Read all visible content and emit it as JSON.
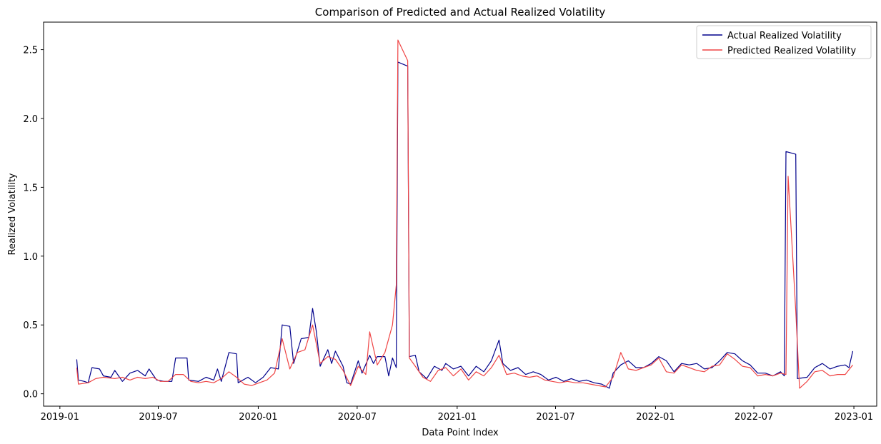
{
  "chart_data": {
    "type": "line",
    "title": "Comparison of Predicted and Actual Realized Volatility",
    "xlabel": "Data Point Index",
    "ylabel": "Realized Volatility",
    "x_ticks": [
      "2019-01",
      "2019-07",
      "2020-01",
      "2020-07",
      "2021-01",
      "2021-07",
      "2022-01",
      "2022-07",
      "2023-01"
    ],
    "y_ticks": [
      "0.0",
      "0.5",
      "1.0",
      "1.5",
      "2.0",
      "2.5"
    ],
    "xlim": [
      "2018-12-02",
      "2023-02-12"
    ],
    "ylim": [
      -0.09,
      2.7
    ],
    "grid": false,
    "legend": "top-right",
    "series": [
      {
        "name": "Actual Realized Volatility",
        "color": "#00008b",
        "points": [
          [
            "2019-02-01",
            0.25
          ],
          [
            "2019-02-04",
            0.1
          ],
          [
            "2019-02-15",
            0.09
          ],
          [
            "2019-02-22",
            0.08
          ],
          [
            "2019-03-01",
            0.19
          ],
          [
            "2019-03-15",
            0.18
          ],
          [
            "2019-03-22",
            0.13
          ],
          [
            "2019-04-05",
            0.12
          ],
          [
            "2019-04-12",
            0.17
          ],
          [
            "2019-04-26",
            0.09
          ],
          [
            "2019-05-10",
            0.15
          ],
          [
            "2019-05-24",
            0.17
          ],
          [
            "2019-06-07",
            0.13
          ],
          [
            "2019-06-14",
            0.18
          ],
          [
            "2019-06-28",
            0.1
          ],
          [
            "2019-07-12",
            0.09
          ],
          [
            "2019-07-26",
            0.09
          ],
          [
            "2019-08-02",
            0.26
          ],
          [
            "2019-08-23",
            0.26
          ],
          [
            "2019-08-26",
            0.1
          ],
          [
            "2019-09-13",
            0.09
          ],
          [
            "2019-09-27",
            0.12
          ],
          [
            "2019-10-11",
            0.1
          ],
          [
            "2019-10-18",
            0.18
          ],
          [
            "2019-10-25",
            0.09
          ],
          [
            "2019-11-08",
            0.3
          ],
          [
            "2019-11-22",
            0.29
          ],
          [
            "2019-11-25",
            0.08
          ],
          [
            "2019-12-13",
            0.12
          ],
          [
            "2019-12-27",
            0.08
          ],
          [
            "2020-01-10",
            0.12
          ],
          [
            "2020-01-24",
            0.19
          ],
          [
            "2020-02-07",
            0.18
          ],
          [
            "2020-02-14",
            0.5
          ],
          [
            "2020-02-28",
            0.49
          ],
          [
            "2020-03-06",
            0.22
          ],
          [
            "2020-03-20",
            0.4
          ],
          [
            "2020-04-03",
            0.41
          ],
          [
            "2020-04-10",
            0.62
          ],
          [
            "2020-04-17",
            0.45
          ],
          [
            "2020-04-24",
            0.2
          ],
          [
            "2020-05-08",
            0.32
          ],
          [
            "2020-05-15",
            0.22
          ],
          [
            "2020-05-22",
            0.31
          ],
          [
            "2020-06-05",
            0.2
          ],
          [
            "2020-06-12",
            0.08
          ],
          [
            "2020-06-19",
            0.07
          ],
          [
            "2020-07-03",
            0.24
          ],
          [
            "2020-07-10",
            0.15
          ],
          [
            "2020-07-24",
            0.28
          ],
          [
            "2020-07-31",
            0.22
          ],
          [
            "2020-08-07",
            0.27
          ],
          [
            "2020-08-21",
            0.27
          ],
          [
            "2020-08-28",
            0.13
          ],
          [
            "2020-09-04",
            0.26
          ],
          [
            "2020-09-11",
            0.19
          ],
          [
            "2020-09-14",
            2.41
          ],
          [
            "2020-10-02",
            2.38
          ],
          [
            "2020-10-05",
            0.27
          ],
          [
            "2020-10-16",
            0.28
          ],
          [
            "2020-10-23",
            0.16
          ],
          [
            "2020-11-06",
            0.11
          ],
          [
            "2020-11-20",
            0.2
          ],
          [
            "2020-12-04",
            0.17
          ],
          [
            "2020-12-11",
            0.22
          ],
          [
            "2020-12-25",
            0.18
          ],
          [
            "2021-01-08",
            0.2
          ],
          [
            "2021-01-22",
            0.13
          ],
          [
            "2021-02-05",
            0.2
          ],
          [
            "2021-02-19",
            0.16
          ],
          [
            "2021-03-05",
            0.24
          ],
          [
            "2021-03-19",
            0.39
          ],
          [
            "2021-03-26",
            0.22
          ],
          [
            "2021-04-09",
            0.17
          ],
          [
            "2021-04-23",
            0.19
          ],
          [
            "2021-05-07",
            0.14
          ],
          [
            "2021-05-21",
            0.16
          ],
          [
            "2021-06-04",
            0.14
          ],
          [
            "2021-06-18",
            0.1
          ],
          [
            "2021-07-02",
            0.12
          ],
          [
            "2021-07-16",
            0.09
          ],
          [
            "2021-07-30",
            0.11
          ],
          [
            "2021-08-13",
            0.09
          ],
          [
            "2021-08-27",
            0.1
          ],
          [
            "2021-09-10",
            0.08
          ],
          [
            "2021-09-24",
            0.07
          ],
          [
            "2021-10-08",
            0.04
          ],
          [
            "2021-10-15",
            0.15
          ],
          [
            "2021-10-29",
            0.21
          ],
          [
            "2021-11-12",
            0.24
          ],
          [
            "2021-11-26",
            0.19
          ],
          [
            "2021-12-10",
            0.19
          ],
          [
            "2021-12-24",
            0.22
          ],
          [
            "2022-01-07",
            0.27
          ],
          [
            "2022-01-21",
            0.24
          ],
          [
            "2022-02-04",
            0.16
          ],
          [
            "2022-02-18",
            0.22
          ],
          [
            "2022-03-04",
            0.21
          ],
          [
            "2022-03-18",
            0.22
          ],
          [
            "2022-04-01",
            0.18
          ],
          [
            "2022-04-15",
            0.19
          ],
          [
            "2022-04-29",
            0.24
          ],
          [
            "2022-05-13",
            0.3
          ],
          [
            "2022-05-27",
            0.29
          ],
          [
            "2022-06-10",
            0.24
          ],
          [
            "2022-06-24",
            0.21
          ],
          [
            "2022-07-08",
            0.15
          ],
          [
            "2022-07-22",
            0.15
          ],
          [
            "2022-08-05",
            0.13
          ],
          [
            "2022-08-19",
            0.16
          ],
          [
            "2022-08-26",
            0.13
          ],
          [
            "2022-08-29",
            1.76
          ],
          [
            "2022-09-16",
            1.74
          ],
          [
            "2022-09-19",
            0.11
          ],
          [
            "2022-10-07",
            0.12
          ],
          [
            "2022-10-21",
            0.19
          ],
          [
            "2022-11-04",
            0.22
          ],
          [
            "2022-11-18",
            0.18
          ],
          [
            "2022-12-02",
            0.2
          ],
          [
            "2022-12-16",
            0.21
          ],
          [
            "2022-12-23",
            0.19
          ],
          [
            "2022-12-30",
            0.31
          ]
        ]
      },
      {
        "name": "Predicted Realized Volatility",
        "color": "#ef4444",
        "points": [
          [
            "2019-02-01",
            0.19
          ],
          [
            "2019-02-04",
            0.07
          ],
          [
            "2019-02-22",
            0.08
          ],
          [
            "2019-03-08",
            0.11
          ],
          [
            "2019-03-22",
            0.12
          ],
          [
            "2019-04-12",
            0.11
          ],
          [
            "2019-04-26",
            0.12
          ],
          [
            "2019-05-10",
            0.1
          ],
          [
            "2019-05-24",
            0.12
          ],
          [
            "2019-06-07",
            0.11
          ],
          [
            "2019-06-21",
            0.12
          ],
          [
            "2019-07-05",
            0.09
          ],
          [
            "2019-07-19",
            0.09
          ],
          [
            "2019-08-02",
            0.14
          ],
          [
            "2019-08-16",
            0.14
          ],
          [
            "2019-08-30",
            0.09
          ],
          [
            "2019-09-13",
            0.08
          ],
          [
            "2019-09-27",
            0.09
          ],
          [
            "2019-10-11",
            0.08
          ],
          [
            "2019-10-25",
            0.11
          ],
          [
            "2019-11-08",
            0.16
          ],
          [
            "2019-11-22",
            0.12
          ],
          [
            "2019-12-06",
            0.07
          ],
          [
            "2019-12-20",
            0.06
          ],
          [
            "2020-01-03",
            0.08
          ],
          [
            "2020-01-17",
            0.1
          ],
          [
            "2020-01-31",
            0.15
          ],
          [
            "2020-02-14",
            0.4
          ],
          [
            "2020-02-28",
            0.18
          ],
          [
            "2020-03-13",
            0.3
          ],
          [
            "2020-03-27",
            0.32
          ],
          [
            "2020-04-10",
            0.5
          ],
          [
            "2020-04-24",
            0.22
          ],
          [
            "2020-05-08",
            0.27
          ],
          [
            "2020-05-22",
            0.25
          ],
          [
            "2020-06-05",
            0.17
          ],
          [
            "2020-06-19",
            0.06
          ],
          [
            "2020-07-03",
            0.2
          ],
          [
            "2020-07-17",
            0.14
          ],
          [
            "2020-07-24",
            0.45
          ],
          [
            "2020-08-07",
            0.21
          ],
          [
            "2020-08-21",
            0.3
          ],
          [
            "2020-09-04",
            0.5
          ],
          [
            "2020-09-11",
            0.79
          ],
          [
            "2020-09-14",
            2.57
          ],
          [
            "2020-10-02",
            2.42
          ],
          [
            "2020-10-05",
            0.26
          ],
          [
            "2020-10-16",
            0.2
          ],
          [
            "2020-10-30",
            0.12
          ],
          [
            "2020-11-13",
            0.09
          ],
          [
            "2020-11-27",
            0.17
          ],
          [
            "2020-12-11",
            0.19
          ],
          [
            "2020-12-25",
            0.13
          ],
          [
            "2021-01-08",
            0.18
          ],
          [
            "2021-01-22",
            0.1
          ],
          [
            "2021-02-05",
            0.16
          ],
          [
            "2021-02-19",
            0.13
          ],
          [
            "2021-03-05",
            0.19
          ],
          [
            "2021-03-19",
            0.28
          ],
          [
            "2021-04-02",
            0.14
          ],
          [
            "2021-04-16",
            0.15
          ],
          [
            "2021-04-30",
            0.13
          ],
          [
            "2021-05-14",
            0.12
          ],
          [
            "2021-05-28",
            0.13
          ],
          [
            "2021-06-11",
            0.1
          ],
          [
            "2021-06-25",
            0.09
          ],
          [
            "2021-07-09",
            0.08
          ],
          [
            "2021-07-23",
            0.09
          ],
          [
            "2021-08-06",
            0.08
          ],
          [
            "2021-08-20",
            0.08
          ],
          [
            "2021-09-03",
            0.07
          ],
          [
            "2021-09-17",
            0.06
          ],
          [
            "2021-10-01",
            0.05
          ],
          [
            "2021-10-15",
            0.12
          ],
          [
            "2021-10-29",
            0.3
          ],
          [
            "2021-11-12",
            0.18
          ],
          [
            "2021-11-26",
            0.17
          ],
          [
            "2021-12-10",
            0.19
          ],
          [
            "2021-12-24",
            0.21
          ],
          [
            "2022-01-07",
            0.26
          ],
          [
            "2022-01-21",
            0.16
          ],
          [
            "2022-02-04",
            0.15
          ],
          [
            "2022-02-18",
            0.21
          ],
          [
            "2022-03-04",
            0.19
          ],
          [
            "2022-03-18",
            0.17
          ],
          [
            "2022-04-01",
            0.16
          ],
          [
            "2022-04-15",
            0.2
          ],
          [
            "2022-04-29",
            0.21
          ],
          [
            "2022-05-13",
            0.29
          ],
          [
            "2022-05-27",
            0.25
          ],
          [
            "2022-06-10",
            0.2
          ],
          [
            "2022-06-24",
            0.19
          ],
          [
            "2022-07-08",
            0.13
          ],
          [
            "2022-07-22",
            0.14
          ],
          [
            "2022-08-05",
            0.13
          ],
          [
            "2022-08-19",
            0.15
          ],
          [
            "2022-08-29",
            0.14
          ],
          [
            "2022-09-02",
            1.58
          ],
          [
            "2022-09-09",
            1.1
          ],
          [
            "2022-09-16",
            0.6
          ],
          [
            "2022-09-23",
            0.04
          ],
          [
            "2022-10-07",
            0.09
          ],
          [
            "2022-10-21",
            0.16
          ],
          [
            "2022-11-04",
            0.17
          ],
          [
            "2022-11-18",
            0.13
          ],
          [
            "2022-12-02",
            0.14
          ],
          [
            "2022-12-16",
            0.14
          ],
          [
            "2022-12-30",
            0.21
          ]
        ]
      }
    ]
  }
}
